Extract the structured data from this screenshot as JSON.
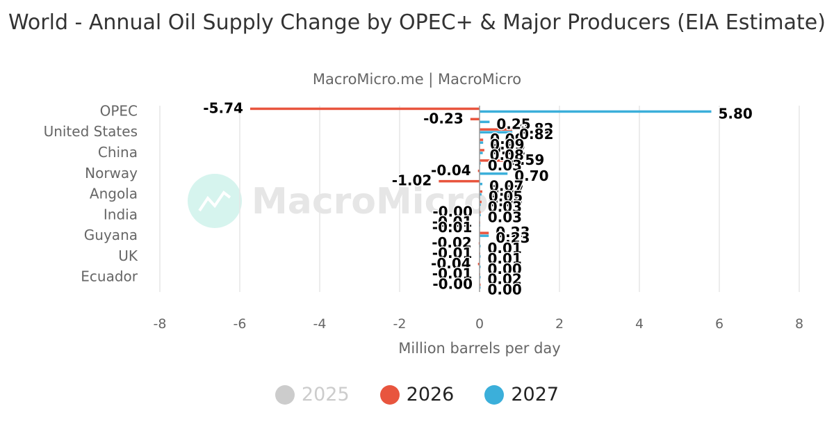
{
  "title": "World - Annual Oil Supply Change by OPEC+ & Major Producers (EIA Estimate)",
  "source": "MacroMicro.me | MacroMicro",
  "watermark": "MacroMicro",
  "colors": {
    "2025": "#cccccc",
    "2026": "#e8553e",
    "2027": "#3bafda"
  },
  "legend": [
    {
      "name": "2025",
      "color": "#cccccc",
      "muted": true
    },
    {
      "name": "2026",
      "color": "#e8553e",
      "muted": false
    },
    {
      "name": "2027",
      "color": "#3bafda",
      "muted": false
    }
  ],
  "chart_data": {
    "type": "bar",
    "orientation": "horizontal",
    "xlabel": "Million barrels per day",
    "xlim": [
      -8,
      8
    ],
    "xticks": [
      -8,
      -6,
      -4,
      -2,
      0,
      2,
      4,
      6,
      8
    ],
    "grid": true,
    "legend_position": "bottom",
    "y_tick_labels": [
      "OPEC",
      "United States",
      "China",
      "Norway",
      "Angola",
      "India",
      "Guyana",
      "UK",
      "Ecuador"
    ],
    "categories": [
      "OPEC",
      "",
      "United States",
      "",
      "China",
      "",
      "Norway",
      "",
      "Angola",
      "",
      "India",
      "",
      "Guyana",
      "",
      "UK",
      "",
      "Ecuador",
      ""
    ],
    "series": [
      {
        "name": "2026",
        "values": [
          -5.74,
          -0.23,
          0.82,
          0.09,
          0.12,
          0.59,
          -0.04,
          -1.02,
          0.07,
          0.05,
          -0.0,
          -0.01,
          0.23,
          -0.02,
          -0.01,
          -0.04,
          -0.01,
          -0.0
        ],
        "labels": [
          "-5.74",
          "-0.23",
          "0.82",
          "0.09",
          "0.12",
          "0.59",
          "-0.04",
          "-1.02",
          "0.07",
          "0.05",
          "-0.00",
          "-0.01",
          "0.23",
          "-0.02",
          "-0.01",
          "-0.04",
          "-0.01",
          "-0.00"
        ]
      },
      {
        "name": "2027",
        "values": [
          5.8,
          0.25,
          0.82,
          0.09,
          0.08,
          0.03,
          0.7,
          0.07,
          0.05,
          0.03,
          0.03,
          -0.01,
          0.23,
          0.01,
          0.01,
          0.0,
          0.02,
          0.0
        ],
        "labels": [
          "5.80",
          "0.25",
          "0.82",
          "0.09",
          "0.08",
          "0.03",
          "0.70",
          "0.07",
          "0.05",
          "0.03",
          "0.03",
          "-0.01",
          "0.23",
          "0.01",
          "0.01",
          "0.00",
          "0.02",
          "0.00"
        ]
      }
    ]
  }
}
